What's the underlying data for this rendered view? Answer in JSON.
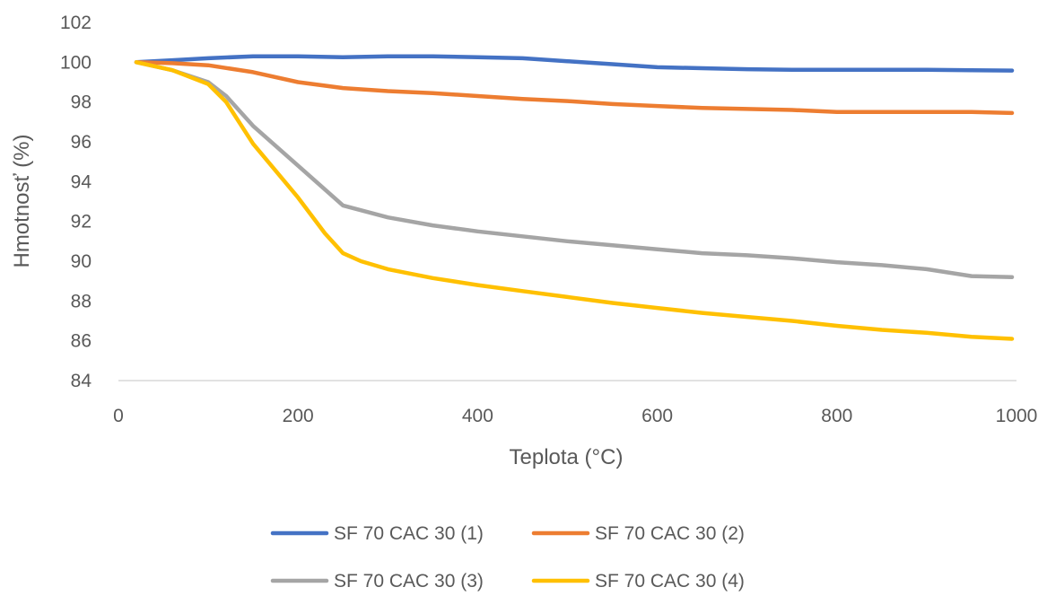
{
  "chart_data": {
    "type": "line",
    "title": "",
    "xlabel": "Teplota (°C)",
    "ylabel": "Hmotnosť (%)",
    "xlim": [
      0,
      1000
    ],
    "ylim": [
      84,
      102
    ],
    "xticks": [
      0,
      200,
      400,
      600,
      800,
      1000
    ],
    "yticks": [
      84,
      86,
      88,
      90,
      92,
      94,
      96,
      98,
      100,
      102
    ],
    "grid": false,
    "legend_position": "bottom",
    "series": [
      {
        "name": "SF 70 CAC 30 (1)",
        "color": "#4472C4",
        "x": [
          20,
          60,
          100,
          150,
          200,
          250,
          300,
          350,
          400,
          450,
          500,
          550,
          600,
          650,
          700,
          750,
          800,
          850,
          900,
          950,
          995
        ],
        "y": [
          100.0,
          100.1,
          100.2,
          100.3,
          100.3,
          100.25,
          100.3,
          100.3,
          100.25,
          100.2,
          100.05,
          99.9,
          99.75,
          99.7,
          99.65,
          99.62,
          99.62,
          99.62,
          99.62,
          99.6,
          99.58
        ]
      },
      {
        "name": "SF 70 CAC 30 (2)",
        "color": "#ED7D31",
        "x": [
          20,
          60,
          100,
          150,
          200,
          250,
          300,
          350,
          400,
          450,
          500,
          550,
          600,
          650,
          700,
          750,
          800,
          850,
          900,
          950,
          995
        ],
        "y": [
          100.0,
          99.95,
          99.85,
          99.5,
          99.0,
          98.7,
          98.55,
          98.45,
          98.3,
          98.15,
          98.05,
          97.9,
          97.8,
          97.7,
          97.65,
          97.6,
          97.5,
          97.5,
          97.5,
          97.5,
          97.45
        ]
      },
      {
        "name": "SF 70 CAC 30 (3)",
        "color": "#A5A5A5",
        "x": [
          20,
          60,
          100,
          120,
          150,
          200,
          250,
          300,
          350,
          400,
          450,
          500,
          550,
          600,
          650,
          700,
          750,
          800,
          850,
          900,
          950,
          995
        ],
        "y": [
          100.0,
          99.6,
          99.0,
          98.3,
          96.8,
          94.8,
          92.8,
          92.2,
          91.8,
          91.5,
          91.25,
          91.0,
          90.8,
          90.6,
          90.4,
          90.3,
          90.15,
          89.95,
          89.8,
          89.6,
          89.25,
          89.2
        ]
      },
      {
        "name": "SF 70 CAC 30 (4)",
        "color": "#FFC000",
        "x": [
          20,
          60,
          100,
          120,
          150,
          200,
          230,
          250,
          270,
          300,
          350,
          400,
          450,
          500,
          550,
          600,
          650,
          700,
          750,
          800,
          850,
          900,
          950,
          995
        ],
        "y": [
          100.0,
          99.6,
          98.9,
          98.0,
          95.9,
          93.2,
          91.4,
          90.4,
          90.0,
          89.6,
          89.15,
          88.8,
          88.5,
          88.2,
          87.9,
          87.65,
          87.4,
          87.2,
          87.0,
          86.75,
          86.55,
          86.4,
          86.2,
          86.1
        ]
      }
    ]
  }
}
